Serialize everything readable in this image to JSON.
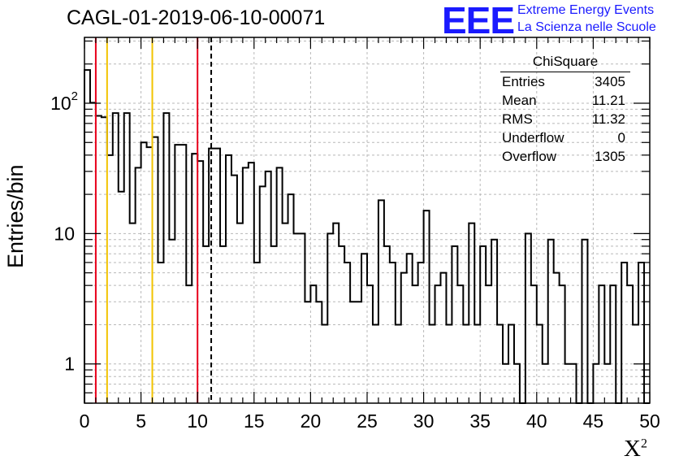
{
  "header": {
    "run_id": "CAGL-01-2019-06-10-00071",
    "logo_text": "EEE",
    "logo_line1": "Extreme Energy Events",
    "logo_line2": "La Scienza nelle Scuole",
    "logo_color": "#1a1aff"
  },
  "stats_box": {
    "title": "ChiSquare",
    "rows": [
      {
        "label": "Entries",
        "value": "3405"
      },
      {
        "label": "Mean",
        "value": "11.21"
      },
      {
        "label": "RMS",
        "value": "11.32"
      },
      {
        "label": "Underflow",
        "value": "0"
      },
      {
        "label": "Overflow",
        "value": "1305"
      }
    ]
  },
  "chart_data": {
    "type": "bar",
    "histogram": true,
    "log_y": true,
    "grid": true,
    "xlabel": "X",
    "xlabel_superscript": "2",
    "ylabel": "Entries/bin",
    "xlim": [
      0,
      50
    ],
    "ylim": [
      0.5,
      320
    ],
    "bin_width": 0.5,
    "x_ticks": [
      "0",
      "5",
      "10",
      "15",
      "20",
      "25",
      "30",
      "35",
      "40",
      "45",
      "50"
    ],
    "y_ticks": [
      {
        "value": 1,
        "label": "1"
      },
      {
        "value": 10,
        "label": "10"
      },
      {
        "value": 100,
        "label": "10",
        "sup": "2"
      }
    ],
    "values": [
      180,
      101,
      80,
      78,
      40,
      84,
      21,
      84,
      12,
      32,
      50,
      46,
      55,
      6,
      84,
      9,
      48,
      48,
      4,
      41,
      36,
      8,
      45,
      45,
      8,
      40,
      28,
      12,
      32,
      35,
      6,
      23,
      30,
      8,
      32,
      12,
      20,
      10,
      10,
      3,
      4,
      3,
      2,
      10,
      12,
      8,
      6,
      3,
      3,
      7,
      4,
      2,
      18,
      8,
      6,
      2,
      5,
      7,
      4,
      6,
      15,
      2,
      4,
      5,
      2,
      8,
      4,
      2,
      12,
      2,
      8,
      4,
      9,
      2,
      1,
      2,
      1,
      0,
      10,
      4,
      2,
      1,
      9,
      5,
      4,
      1,
      1,
      0.3,
      9,
      0.3,
      1,
      4,
      1,
      4,
      0.3,
      6,
      4,
      2,
      6,
      0.3
    ],
    "reference_lines": [
      {
        "x": 1,
        "color": "#e8001a",
        "style": "solid"
      },
      {
        "x": 2,
        "color": "#f2c300",
        "style": "solid"
      },
      {
        "x": 6,
        "color": "#f2c300",
        "style": "solid"
      },
      {
        "x": 10,
        "color": "#e8001a",
        "style": "solid"
      },
      {
        "x": 11.21,
        "color": "#000000",
        "style": "dashed"
      }
    ]
  }
}
